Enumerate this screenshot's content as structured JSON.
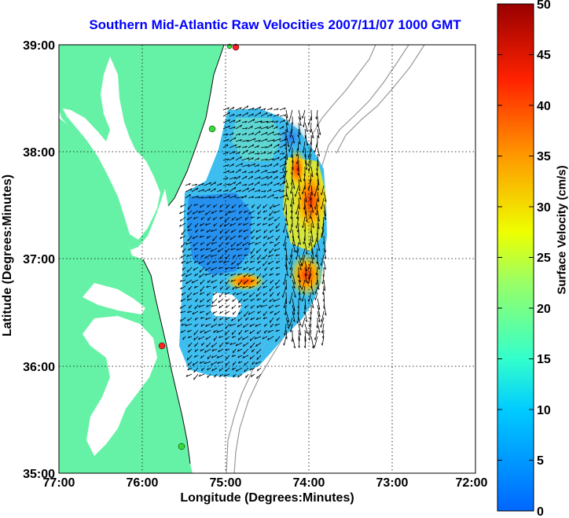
{
  "title": "Southern Mid-Atlantic Raw Velocities 2007/11/07 1000 GMT",
  "xlabel": "Longitude (Degrees:Minutes)",
  "ylabel": "Latitude (Degrees:Minutes)",
  "colorbar": {
    "label": "Surface Velocity (cm/s)",
    "ticks": [
      "50",
      "45",
      "40",
      "35",
      "30",
      "25",
      "20",
      "15",
      "10",
      "5",
      "0"
    ],
    "range": [
      0,
      50
    ]
  },
  "x_ticks": [
    "77:00",
    "76:00",
    "75:00",
    "74:00",
    "73:00",
    "72:00"
  ],
  "y_ticks": [
    "39:00",
    "38:00",
    "37:00",
    "36:00",
    "35:00"
  ],
  "colors": {
    "land": "#66f2a6",
    "title": "#0000ff",
    "bathymetry": "#888888"
  },
  "chart_data": {
    "type": "heatmap",
    "title": "Southern Mid-Atlantic Raw Velocities 2007/11/07 1000 GMT",
    "xlabel": "Longitude (Degrees:Minutes)",
    "ylabel": "Latitude (Degrees:Minutes)",
    "xlim": [
      -77,
      -72
    ],
    "ylim": [
      35,
      39
    ],
    "colorbar_label": "Surface Velocity (cm/s)",
    "clim": [
      0,
      50
    ],
    "grid": true,
    "stations": [
      {
        "lon": -74.85,
        "lat": 38.95,
        "color": "red"
      },
      {
        "lon": -75.15,
        "lat": 38.2,
        "color": "green"
      },
      {
        "lon": -75.72,
        "lat": 36.18,
        "color": "red"
      },
      {
        "lon": -75.5,
        "lat": 35.25,
        "color": "green"
      }
    ]
  }
}
